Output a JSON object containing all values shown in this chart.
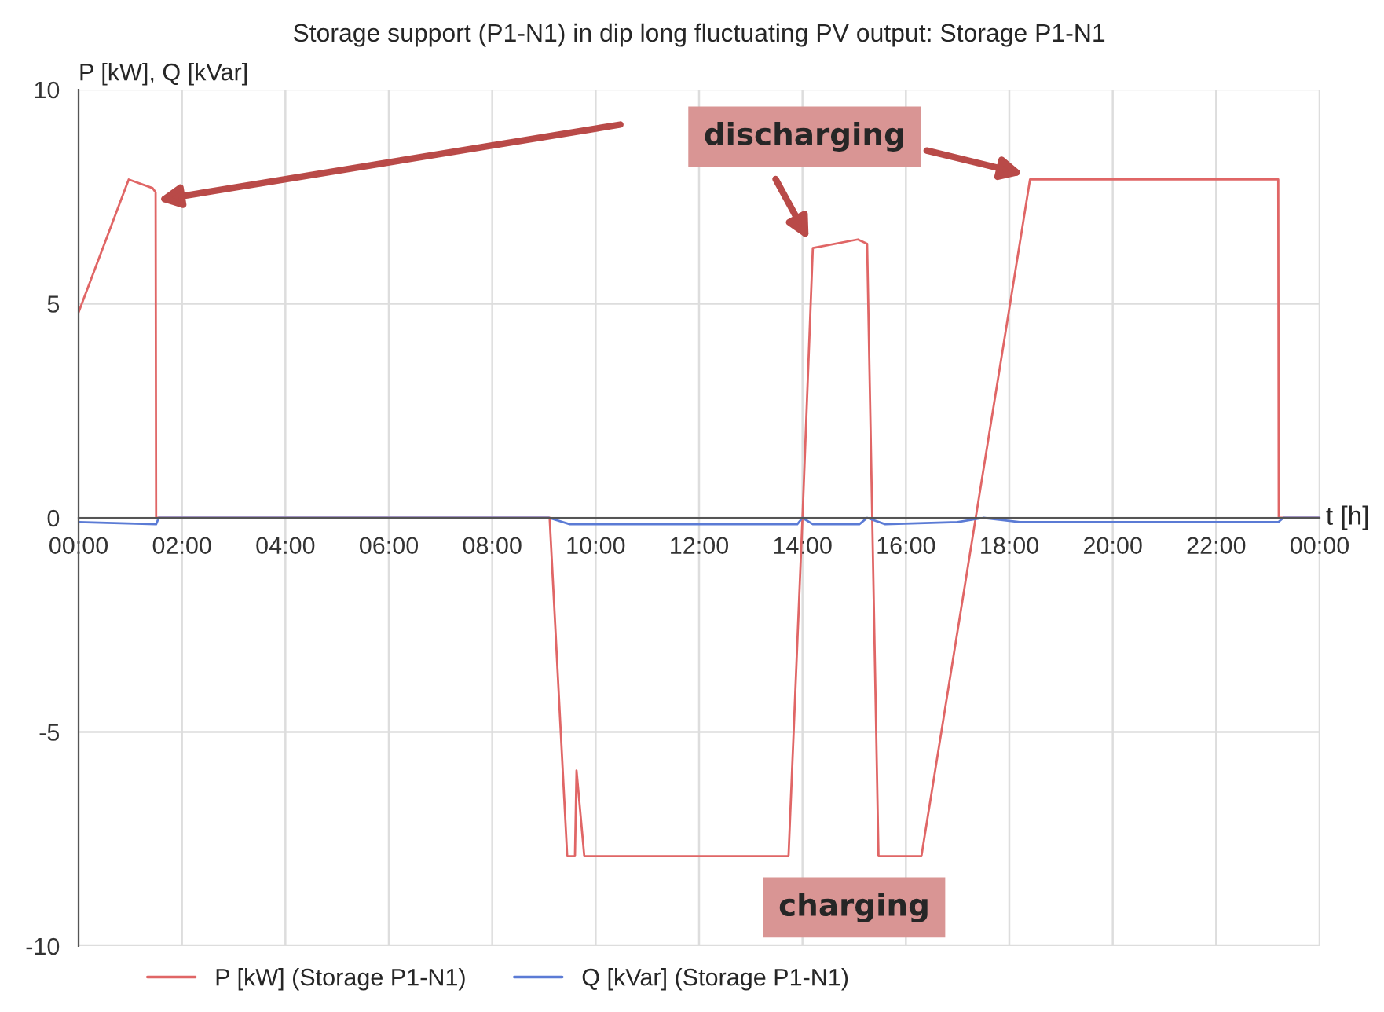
{
  "chart_data": {
    "type": "line",
    "title": "Storage support (P1-N1) in dip long fluctuating PV output: Storage P1-N1",
    "ylabel": "P [kW], Q [kVar]",
    "xlabel": "t [h]",
    "annotations": [
      "discharging",
      "charging"
    ],
    "xlim": [
      0,
      24
    ],
    "ylim": [
      -10,
      10
    ],
    "xticks": [
      {
        "value": 0,
        "label": "00:00"
      },
      {
        "value": 2,
        "label": "02:00"
      },
      {
        "value": 4,
        "label": "04:00"
      },
      {
        "value": 6,
        "label": "06:00"
      },
      {
        "value": 8,
        "label": "08:00"
      },
      {
        "value": 10,
        "label": "10:00"
      },
      {
        "value": 12,
        "label": "12:00"
      },
      {
        "value": 14,
        "label": "14:00"
      },
      {
        "value": 16,
        "label": "16:00"
      },
      {
        "value": 18,
        "label": "18:00"
      },
      {
        "value": 20,
        "label": "20:00"
      },
      {
        "value": 22,
        "label": "22:00"
      },
      {
        "value": 24,
        "label": "00:00"
      }
    ],
    "yticks": [
      -10,
      -5,
      0,
      5,
      10
    ],
    "grid": true,
    "legend": "bottom",
    "series": [
      {
        "name": "P [kW] (Storage P1-N1)",
        "color": "#e06666",
        "x": [
          0,
          0.97,
          1.43,
          1.49,
          1.5,
          9.11,
          9.45,
          9.6,
          9.63,
          9.78,
          13.73,
          14.0,
          14.2,
          15.07,
          15.25,
          15.47,
          16.3,
          18.4,
          23.2,
          23.21,
          24
        ],
        "values": [
          4.8,
          7.9,
          7.7,
          7.6,
          0,
          0,
          -7.9,
          -7.9,
          -5.9,
          -7.9,
          -7.9,
          0,
          6.3,
          6.5,
          6.4,
          -7.9,
          -7.9,
          7.9,
          7.9,
          0,
          0
        ]
      },
      {
        "name": "Q [kVar] (Storage P1-N1)",
        "color": "#5b7bd5",
        "x": [
          0,
          1.5,
          1.55,
          9.1,
          9.5,
          13.9,
          14.0,
          14.2,
          15.1,
          15.25,
          15.6,
          17.0,
          17.5,
          18.2,
          23.2,
          23.3,
          24
        ],
        "values": [
          -0.1,
          -0.15,
          0,
          0,
          -0.15,
          -0.15,
          0,
          -0.15,
          -0.15,
          0,
          -0.15,
          -0.1,
          0,
          -0.1,
          -0.1,
          0,
          0
        ]
      }
    ]
  }
}
